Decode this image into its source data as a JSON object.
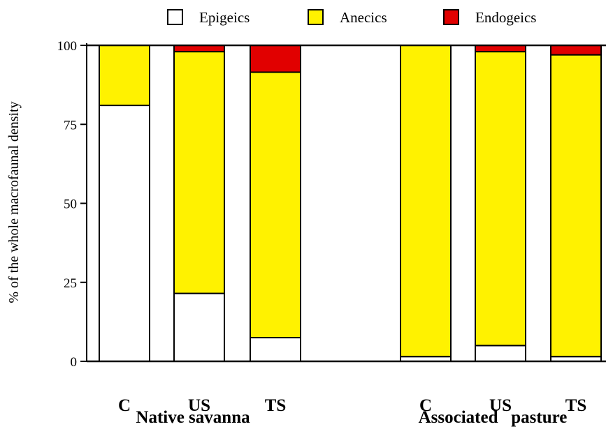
{
  "chart_data": {
    "type": "bar",
    "stacked": true,
    "ylabel": "% of the whole macrofaunal density",
    "ylim": [
      0,
      100
    ],
    "yticks": [
      0,
      25,
      50,
      75,
      100
    ],
    "categories": [
      "C",
      "US",
      "TS",
      "C",
      "US",
      "TS"
    ],
    "groups": [
      {
        "label": "Native savanna",
        "categories": [
          0,
          1,
          2
        ]
      },
      {
        "label": "Associated   pasture",
        "categories": [
          3,
          4,
          5
        ]
      }
    ],
    "series": [
      {
        "name": "Epigeics",
        "color": "#ffffff",
        "values": [
          81,
          21.5,
          7.5,
          1.5,
          5,
          1.5
        ]
      },
      {
        "name": "Anecics",
        "color": "#fff200",
        "values": [
          19,
          76.5,
          84,
          98.5,
          93,
          95.5
        ]
      },
      {
        "name": "Endogeics",
        "color": "#e10000",
        "values": [
          0,
          2,
          8.5,
          0,
          2,
          3
        ]
      }
    ],
    "legend_position": "top",
    "grid": false
  }
}
